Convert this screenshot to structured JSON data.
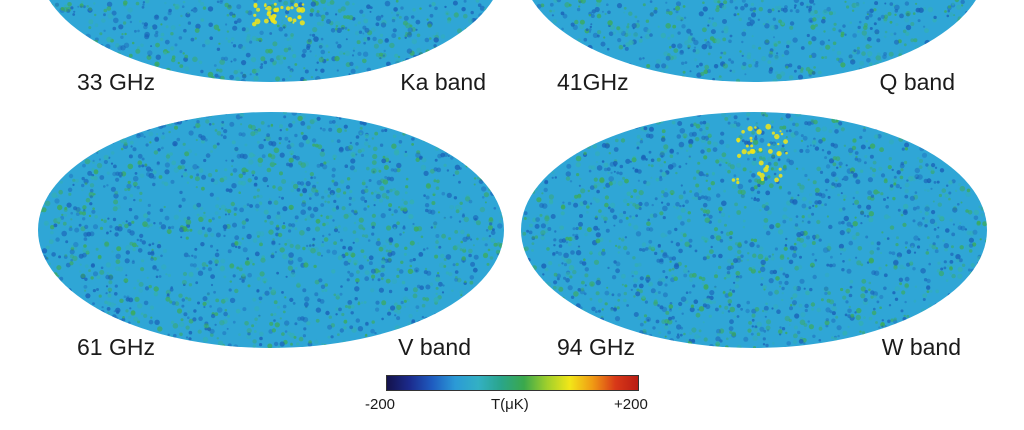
{
  "panels": [
    {
      "frequency": "33 GHz",
      "band": "Ka band"
    },
    {
      "frequency": "41GHz",
      "band": "Q band"
    },
    {
      "frequency": "61 GHz",
      "band": "V band"
    },
    {
      "frequency": "94 GHz",
      "band": "W band"
    }
  ],
  "colorbar": {
    "min_label": "-200",
    "unit_label": "T(μK)",
    "max_label": "+200",
    "colors": [
      "#14124a",
      "#1b2a8c",
      "#1f5cc0",
      "#2b9ad6",
      "#33b0c4",
      "#2aa58a",
      "#3aa84c",
      "#9fcf2c",
      "#f2e618",
      "#f09a14",
      "#d83818",
      "#b81c14"
    ]
  },
  "map_colors": {
    "base": "#2fa6d6",
    "deep_blue": "#1a5fb6",
    "teal": "#33b0b0",
    "green": "#3cab58",
    "yellow": "#f2e618"
  }
}
